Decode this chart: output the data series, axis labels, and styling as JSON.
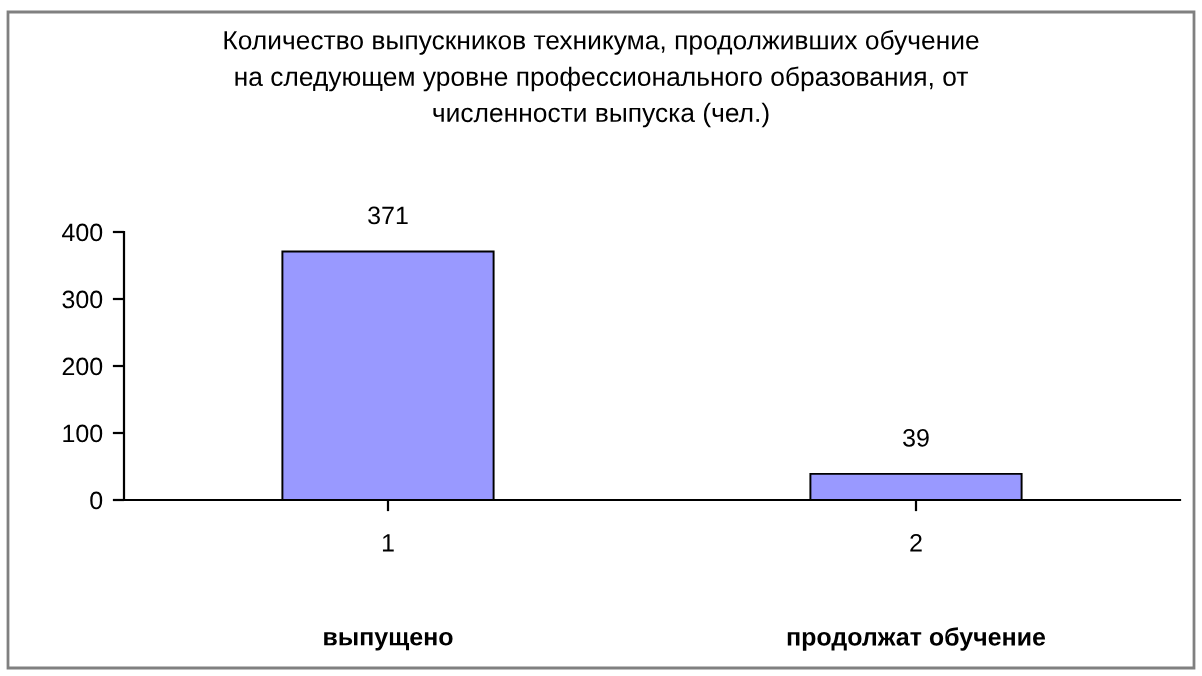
{
  "chart_data": {
    "type": "bar",
    "title": "Количество выпускников техникума, продолживших обучение\nна следующем уровне профессионального образования, от\nчисленности выпуска (чел.)",
    "categories": [
      "1",
      "2"
    ],
    "values": [
      371,
      39
    ],
    "color": "#9999ff",
    "data_labels": true,
    "ylim": [
      0,
      400
    ],
    "yticks": [
      0,
      100,
      200,
      300,
      400
    ],
    "grid": false,
    "legend": false,
    "annotations": [
      "выпущено",
      "продолжат обучение"
    ]
  }
}
